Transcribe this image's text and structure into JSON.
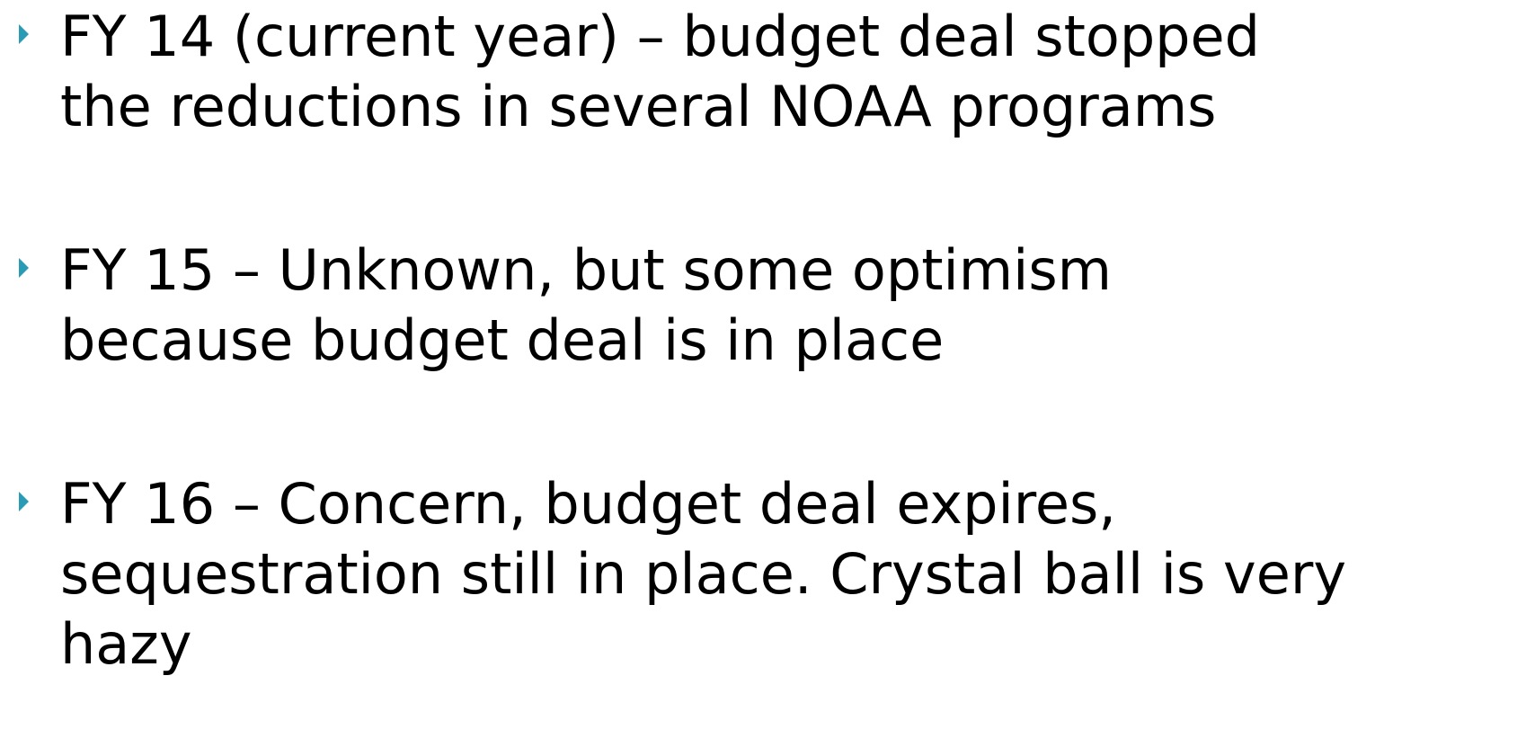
{
  "bullets": [
    {
      "lines": [
        "FY 14 (current year) – budget deal stopped",
        "the reductions in several NOAA programs"
      ]
    },
    {
      "lines": [
        "FY 15 – Unknown, but some optimism",
        "because budget deal is in place"
      ]
    },
    {
      "lines": [
        "FY 16 – Concern, budget deal expires,",
        "sequestration still in place. Crystal ball is very",
        "hazy"
      ]
    }
  ]
}
